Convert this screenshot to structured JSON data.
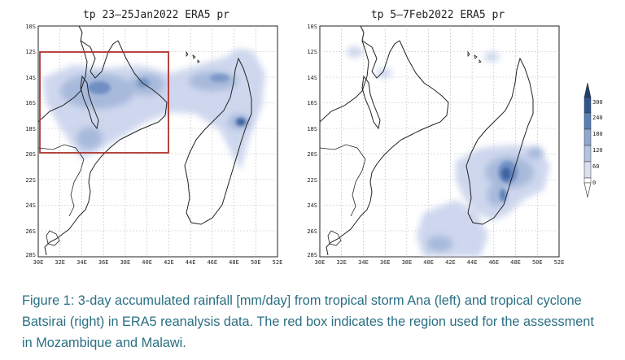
{
  "maps": [
    {
      "title": "tp 23–25Jan2022 ERA5 pr",
      "has_region_box": true
    },
    {
      "title": "tp 5–7Feb2022 ERA5 pr",
      "has_region_box": false
    }
  ],
  "lat_labels": [
    "10S",
    "12S",
    "14S",
    "16S",
    "18S",
    "20S",
    "22S",
    "24S",
    "26S",
    "28S"
  ],
  "lon_labels": [
    "30E",
    "32E",
    "34E",
    "36E",
    "38E",
    "40E",
    "42E",
    "44E",
    "46E",
    "48E",
    "50E",
    "52E"
  ],
  "colorbar": {
    "ticks": [
      "300",
      "240",
      "180",
      "120",
      "60",
      "0"
    ],
    "unit": "mm/day"
  },
  "colors": {
    "caption": "#2a6f84",
    "region_box": "#b0332c",
    "rain_light": "#c9d3ec",
    "rain_mid": "#8fa6cf",
    "rain_dark": "#3d63a0"
  },
  "caption": "Figure 1: 3-day accumulated rainfall [mm/day] from tropical storm Ana (left) and tropical cyclone Batsirai (right) in ERA5 reanalysis data. The red box indicates the region used for the assessment in Mozambique and Malawi."
}
